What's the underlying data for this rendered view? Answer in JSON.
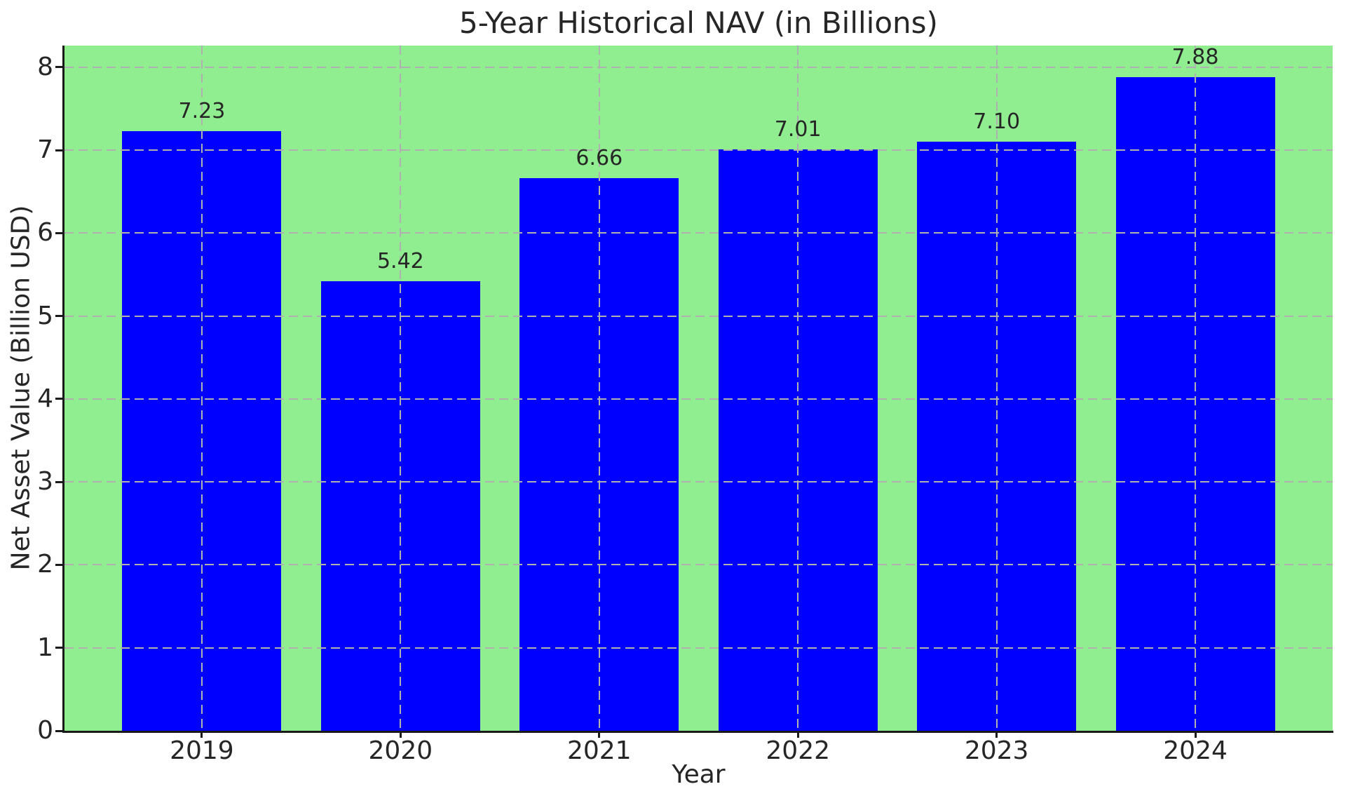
{
  "chart_data": {
    "type": "bar",
    "title": "5-Year Historical NAV (in Billions)",
    "xlabel": "Year",
    "ylabel": "Net Asset Value (Billion USD)",
    "categories": [
      "2019",
      "2020",
      "2021",
      "2022",
      "2023",
      "2024"
    ],
    "values": [
      7.23,
      5.42,
      6.66,
      7.01,
      7.1,
      7.88
    ],
    "value_labels": [
      "7.23",
      "5.42",
      "6.66",
      "7.01",
      "7.10",
      "7.88"
    ],
    "yticks": [
      0,
      1,
      2,
      3,
      4,
      5,
      6,
      7,
      8
    ],
    "ytick_labels": [
      "0",
      "1",
      "2",
      "3",
      "4",
      "5",
      "6",
      "7",
      "8"
    ],
    "ylim": [
      0,
      8.26
    ],
    "grid": "dashed, horizontal and vertical, drawn above bars",
    "legend": "none",
    "colors": {
      "plot_background": "#90ee90",
      "figure_background": "#ffffff",
      "bar": "#0000ff",
      "grid": "#b0b0b0",
      "text": "#262626",
      "spine": "#1a1a1a"
    }
  }
}
